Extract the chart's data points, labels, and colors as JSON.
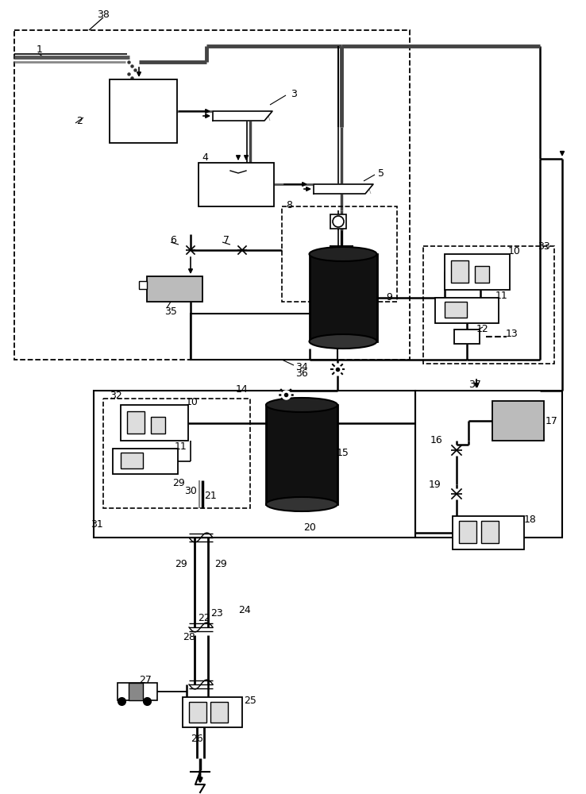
{
  "bg": "#ffffff",
  "black": "#000000",
  "dark": "#1a1a1a",
  "dgray": "#444444",
  "gray": "#888888",
  "lgray": "#cccccc",
  "hatch": "#aaaaaa",
  "white": "#ffffff"
}
